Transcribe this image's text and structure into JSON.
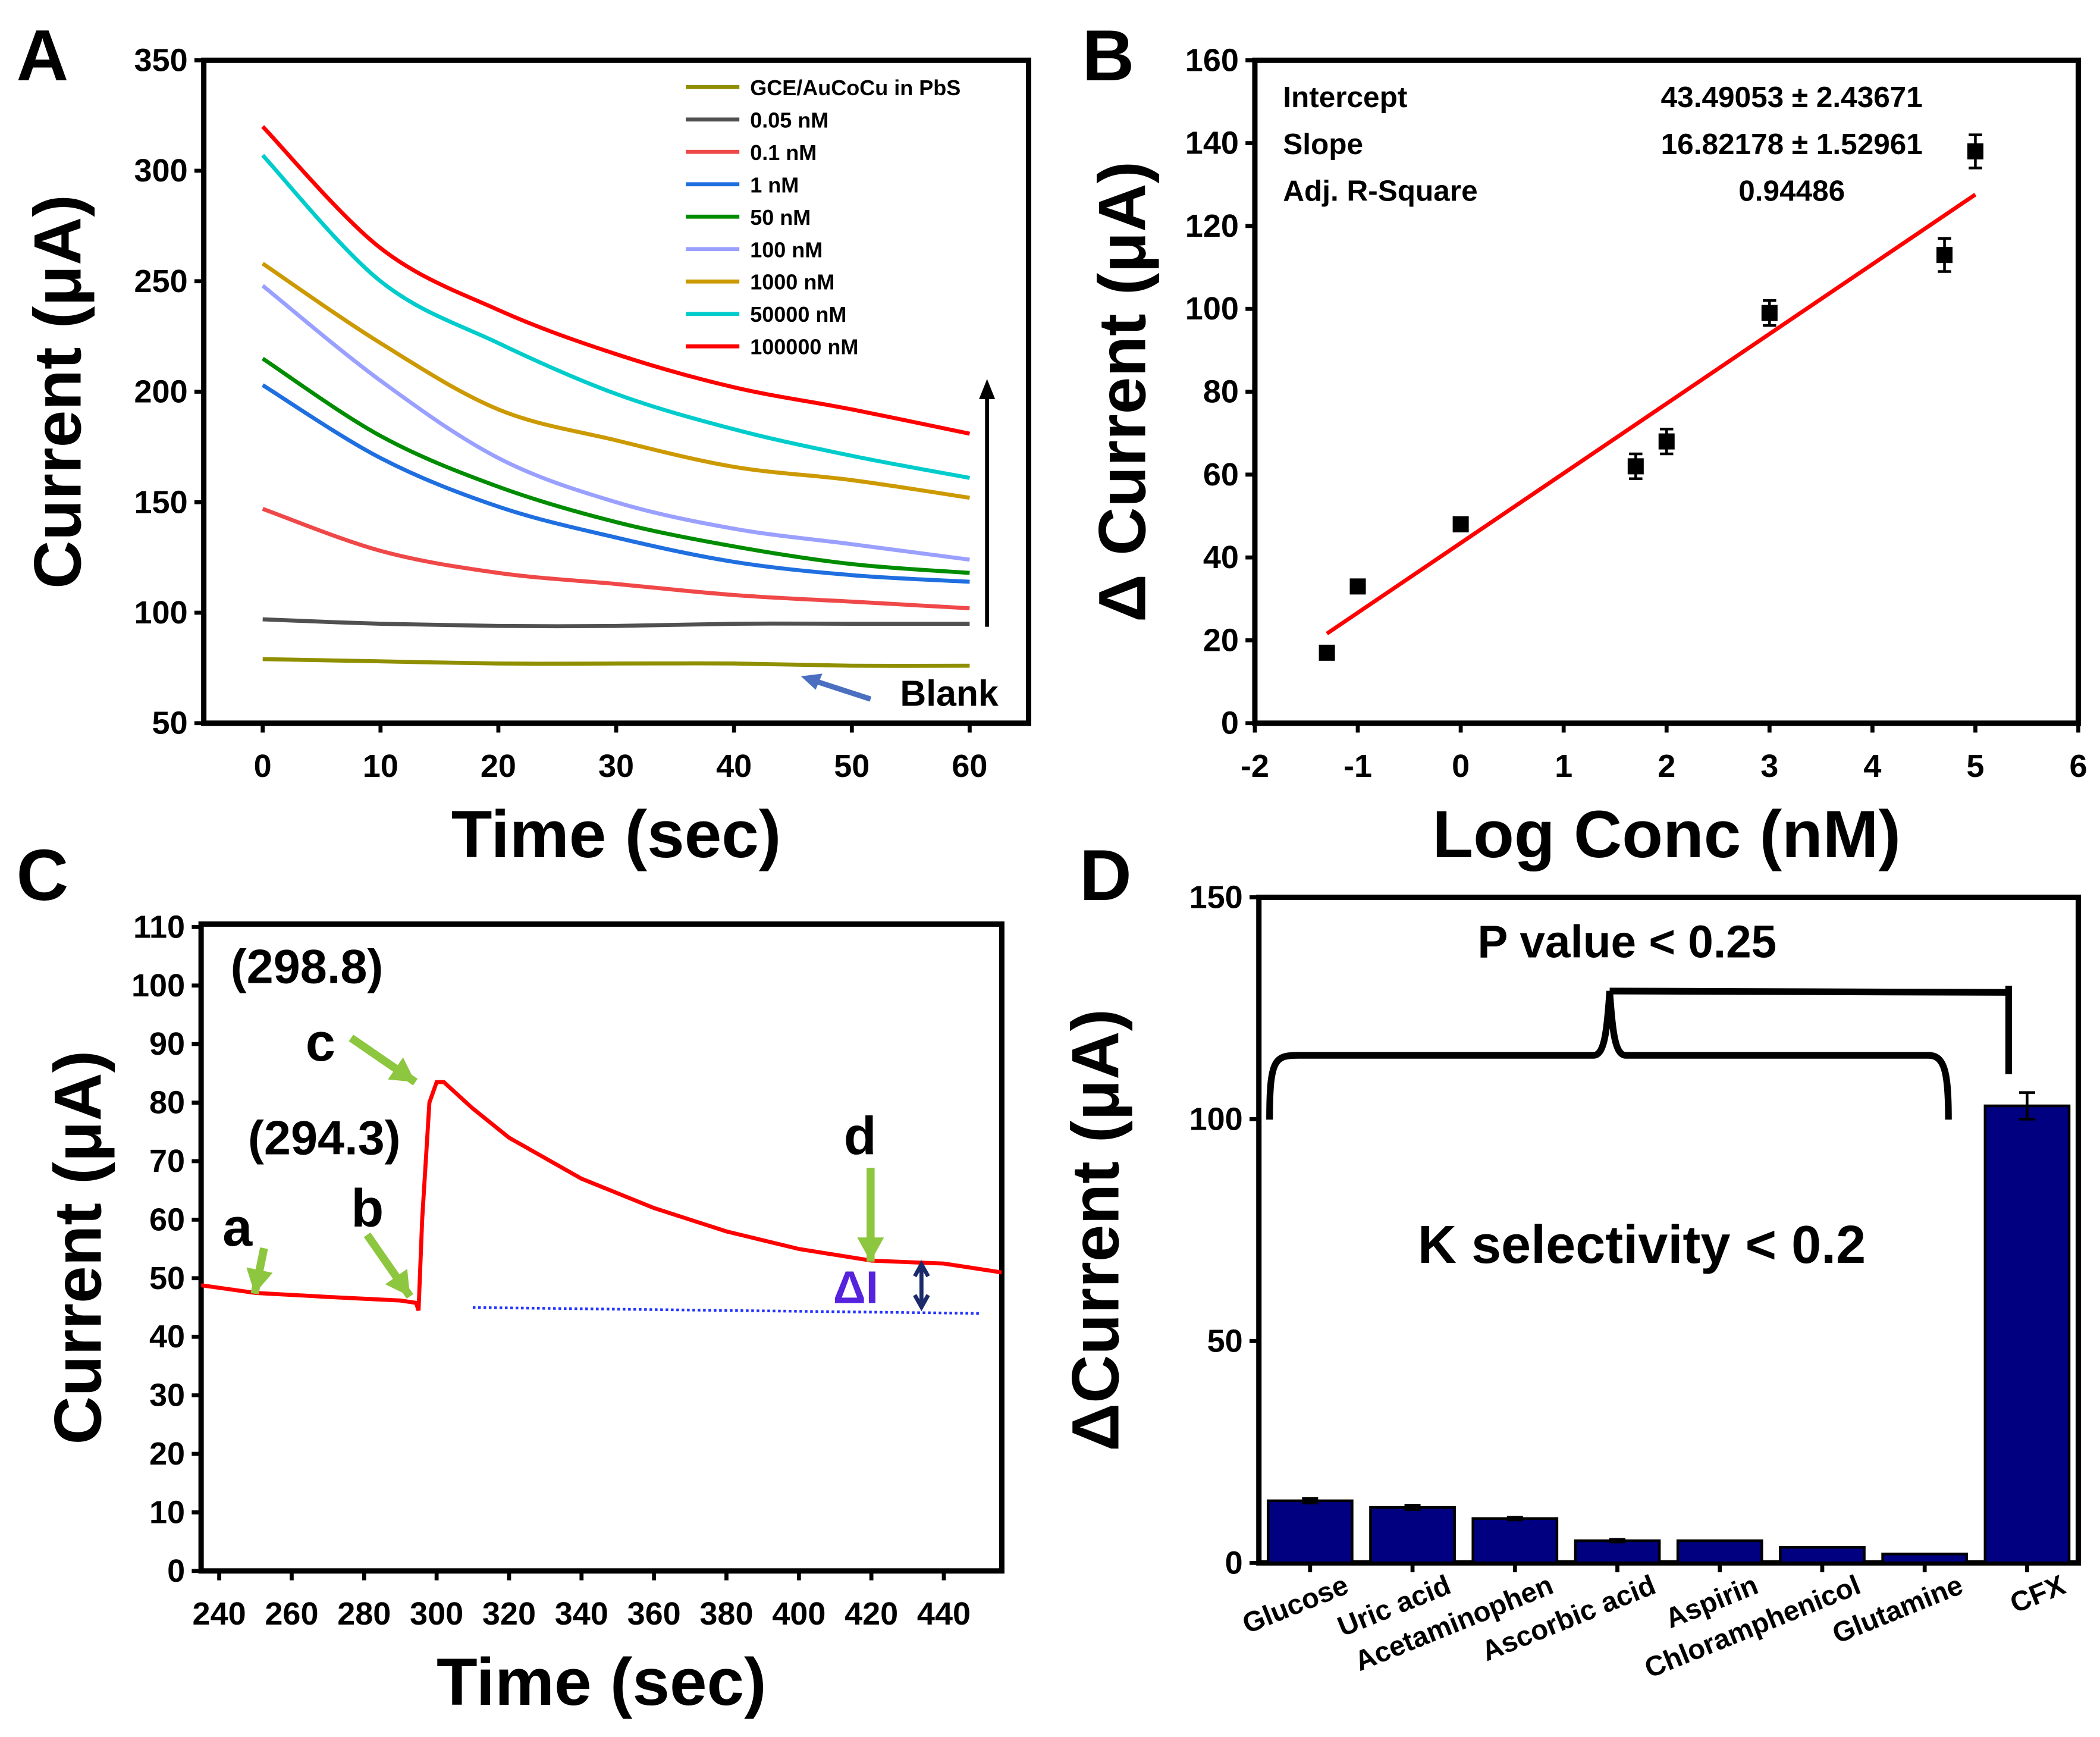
{
  "panel_letters": [
    "A",
    "B",
    "C",
    "D"
  ],
  "chart_data": [
    {
      "type": "line",
      "panel": "A",
      "xlabel": "Time (sec)",
      "ylabel": "Current (μA)",
      "xlim": [
        -5,
        65
      ],
      "ylim": [
        50,
        350
      ],
      "xticks": [
        0,
        10,
        20,
        30,
        40,
        50,
        60
      ],
      "yticks": [
        50,
        100,
        150,
        200,
        250,
        300,
        350
      ],
      "x": [
        0,
        10,
        20,
        30,
        40,
        50,
        60
      ],
      "legend_position": "top-right",
      "series": [
        {
          "name": "GCE/AuCoCu in PbS",
          "color": "#8f8f00",
          "values": [
            79,
            78,
            77,
            77,
            77,
            76,
            76
          ]
        },
        {
          "name": "0.05 nM",
          "color": "#505050",
          "values": [
            97,
            95,
            94,
            94,
            95,
            95,
            95
          ]
        },
        {
          "name": "0.1 nM",
          "color": "#f04848",
          "values": [
            147,
            128,
            118,
            113,
            108,
            105,
            102
          ]
        },
        {
          "name": "1 nM",
          "color": "#1f6fe0",
          "values": [
            203,
            170,
            148,
            134,
            123,
            117,
            114
          ]
        },
        {
          "name": "50 nM",
          "color": "#008c00",
          "values": [
            215,
            180,
            157,
            141,
            130,
            122,
            118
          ]
        },
        {
          "name": "100 nM",
          "color": "#9aa0ff",
          "values": [
            248,
            205,
            170,
            150,
            138,
            131,
            124
          ]
        },
        {
          "name": "1000 nM",
          "color": "#cc9900",
          "values": [
            258,
            222,
            192,
            178,
            166,
            160,
            152
          ]
        },
        {
          "name": "50000 nM",
          "color": "#00cccc",
          "values": [
            307,
            250,
            222,
            199,
            183,
            171,
            161
          ]
        },
        {
          "name": "100000 nM",
          "color": "#ff0000",
          "values": [
            320,
            265,
            237,
            217,
            202,
            192,
            181
          ]
        }
      ],
      "annotations": {
        "blank_label": "Blank"
      }
    },
    {
      "type": "scatter",
      "panel": "B",
      "xlabel": "Log Conc (nM)",
      "ylabel": "Δ Current (μA)",
      "xlim": [
        -2,
        6
      ],
      "ylim": [
        0,
        160
      ],
      "xticks": [
        -2,
        -1,
        0,
        1,
        2,
        3,
        4,
        5,
        6
      ],
      "yticks": [
        0,
        20,
        40,
        60,
        80,
        100,
        120,
        140,
        160
      ],
      "points": [
        {
          "x": -1.3,
          "y": 17,
          "err": 1
        },
        {
          "x": -1,
          "y": 33,
          "err": 1
        },
        {
          "x": 0,
          "y": 48,
          "err": 1
        },
        {
          "x": 1.7,
          "y": 62,
          "err": 3
        },
        {
          "x": 2,
          "y": 68,
          "err": 3
        },
        {
          "x": 3,
          "y": 99,
          "err": 3
        },
        {
          "x": 4.7,
          "y": 113,
          "err": 4
        },
        {
          "x": 5,
          "y": 138,
          "err": 4
        }
      ],
      "fit": {
        "intercept": 43.49053,
        "slope": 16.82178,
        "x_range": [
          -1.3,
          5
        ],
        "color": "#ff0000"
      },
      "stats_table": [
        {
          "label": "Intercept",
          "value": "43.49053 ± 2.43671"
        },
        {
          "label": "Slope",
          "value": "16.82178 ± 1.52961"
        },
        {
          "label": "Adj. R-Square",
          "value": "0.94486"
        }
      ]
    },
    {
      "type": "line",
      "panel": "C",
      "xlabel": "Time (sec)",
      "ylabel": "Current (μA)",
      "xlim": [
        235,
        456
      ],
      "ylim": [
        0,
        110.5
      ],
      "xticks": [
        240,
        260,
        280,
        300,
        320,
        340,
        360,
        380,
        400,
        420,
        440
      ],
      "yticks": [
        0,
        10,
        20,
        30,
        40,
        50,
        60,
        70,
        80,
        90,
        100,
        110
      ],
      "series": [
        {
          "name": "response",
          "color": "#ff0000",
          "style": "solid",
          "x": [
            235,
            250,
            270,
            290,
            294.3,
            295,
            296,
            298,
            300,
            302,
            310,
            320,
            340,
            360,
            380,
            400,
            420,
            440,
            456
          ],
          "y": [
            48.8,
            47.5,
            46.8,
            46.2,
            45.8,
            44.5,
            60,
            80,
            83.5,
            83.5,
            79,
            74,
            67,
            62,
            58,
            55,
            53,
            52.5,
            51
          ]
        },
        {
          "name": "baseline",
          "color": "#2233ff",
          "style": "dotted",
          "x": [
            310,
            450
          ],
          "y": [
            45,
            44
          ]
        }
      ],
      "annotations": {
        "label_a": "a",
        "label_b": "b",
        "label_c": "c",
        "label_d": "d",
        "value_b": "(294.3)",
        "value_c": "(298.8)",
        "delta_i": "ΔI",
        "arrow_color": "#8dc63f",
        "delta_color": "#5522dd"
      }
    },
    {
      "type": "bar",
      "panel": "D",
      "xlabel": "",
      "ylabel": "ΔCurrent (μA)",
      "ylim": [
        0,
        150
      ],
      "yticks": [
        0,
        50,
        100,
        150
      ],
      "categories": [
        "Glucose",
        "Uric acid",
        "Acetaminophen",
        "Ascorbic acid",
        "Aspirin",
        "Chloramphenicol",
        "Glutamine",
        "CFX"
      ],
      "values": [
        14,
        12.5,
        10,
        5,
        5,
        3.5,
        2,
        103
      ],
      "errors": [
        0.5,
        0.5,
        0.3,
        0.3,
        0,
        0,
        0,
        3
      ],
      "bar_color": "#000080",
      "annotations": {
        "p_value": "P value < 0.25",
        "k_selectivity": "K selectivity < 0.2"
      }
    }
  ]
}
